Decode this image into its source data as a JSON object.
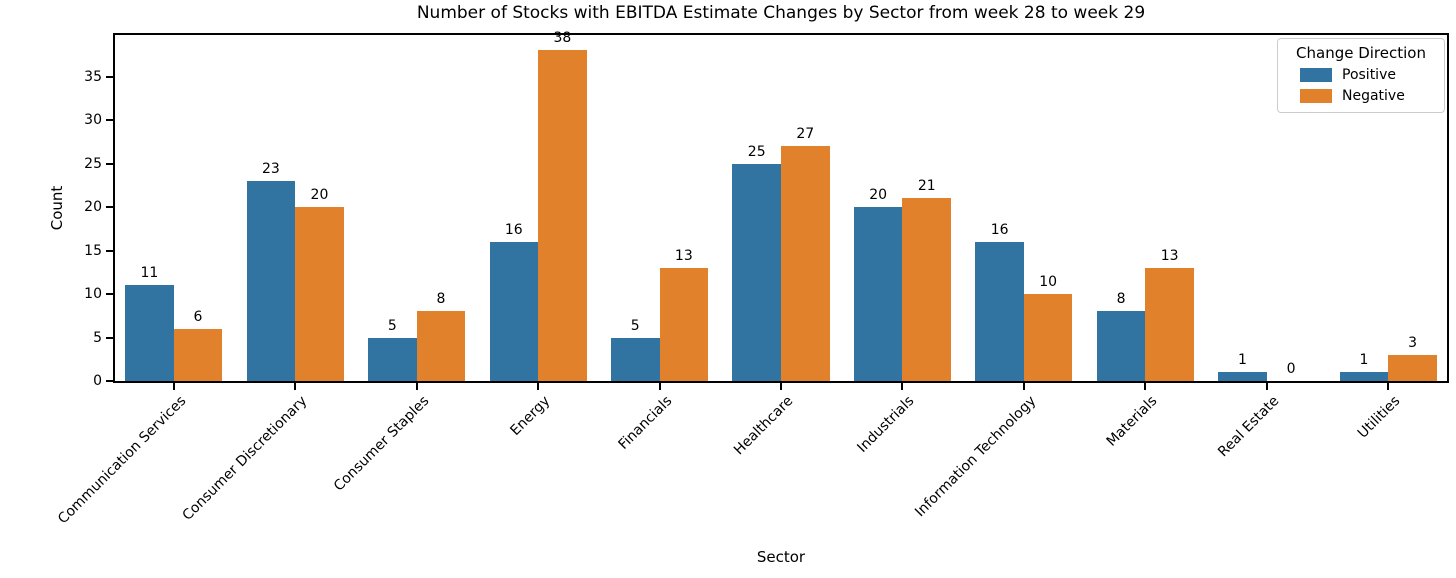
{
  "title": "Number of Stocks with EBITDA Estimate Changes by Sector from week 28 to week 29",
  "chart_data": {
    "type": "bar",
    "grouped": true,
    "title": "Number of Stocks with EBITDA Estimate Changes by Sector from week 28 to week 29",
    "xlabel": "Sector",
    "ylabel": "Count",
    "categories": [
      "Communication Services",
      "Consumer Discretionary",
      "Consumer Staples",
      "Energy",
      "Financials",
      "Healthcare",
      "Industrials",
      "Information Technology",
      "Materials",
      "Real Estate",
      "Utilities"
    ],
    "series": [
      {
        "name": "Positive",
        "color": "#3274a1",
        "values": [
          11,
          23,
          5,
          16,
          5,
          25,
          20,
          16,
          8,
          1,
          1
        ]
      },
      {
        "name": "Negative",
        "color": "#e1812c",
        "values": [
          6,
          20,
          8,
          38,
          13,
          27,
          21,
          10,
          13,
          0,
          3
        ]
      }
    ],
    "bar_value_labels": true,
    "legend_title": "Change Direction",
    "legend_position": "upper right",
    "ylim": [
      0,
      40
    ],
    "yticks": [
      0,
      5,
      10,
      15,
      20,
      25,
      30,
      35
    ],
    "grid": false,
    "x_tick_rotation_deg": 45
  }
}
